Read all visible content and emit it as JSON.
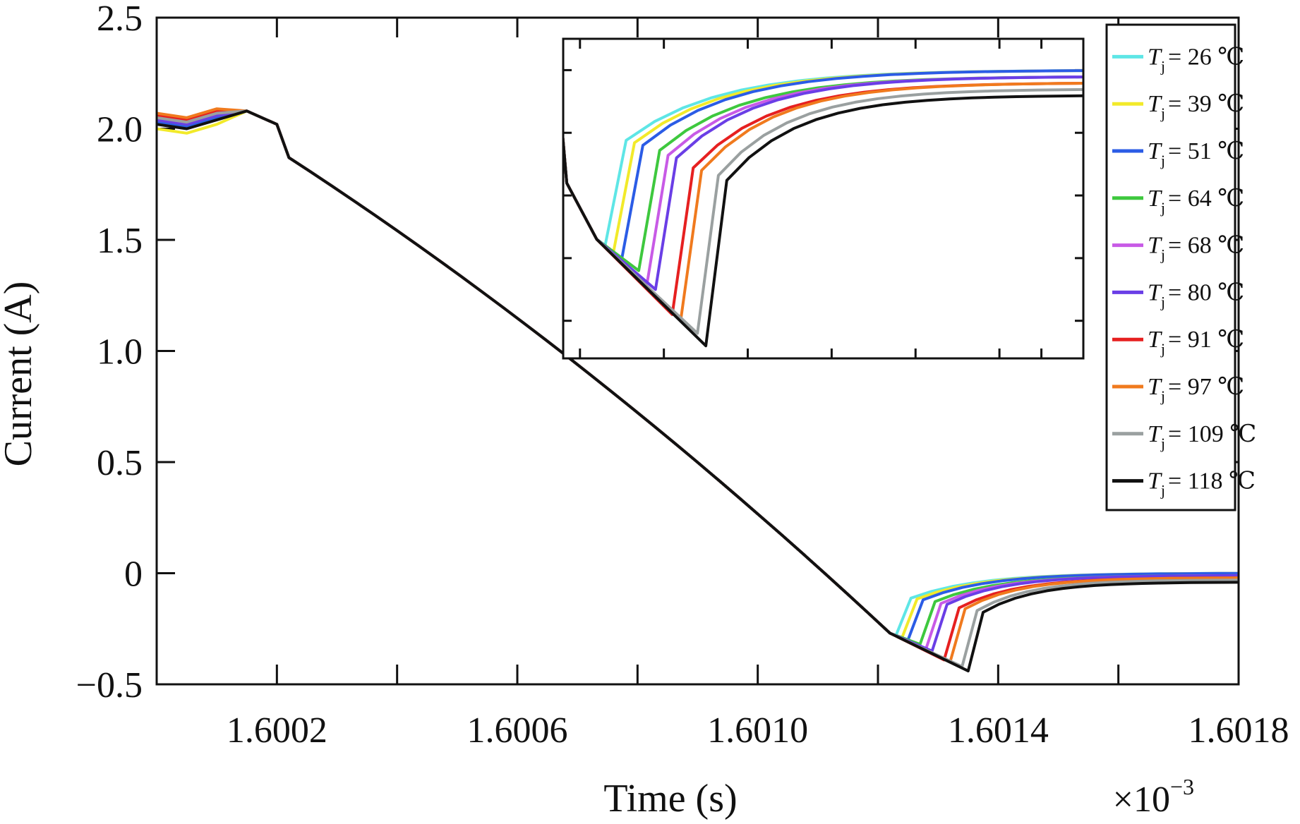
{
  "chart_data": {
    "type": "line",
    "xlabel": "Time (s)",
    "x_multiplier": "×10",
    "x_multiplier_exp": "−3",
    "ylabel": "Current (A)",
    "xlim": [
      1.6,
      1.6018
    ],
    "ylim": [
      -0.5,
      2.5
    ],
    "x_ticks": [
      "1.6002",
      "1.6006",
      "1.6010",
      "1.6014",
      "1.6018"
    ],
    "x_tick_values": [
      1.6002,
      1.6006,
      1.601,
      1.6014,
      1.6018
    ],
    "y_ticks": [
      "2.5",
      "2.0",
      "1.5",
      "1.0",
      "0.5",
      "0",
      "−0.5"
    ],
    "y_tick_values": [
      2.5,
      2.0,
      1.5,
      1.0,
      0.5,
      0,
      -0.5
    ],
    "legend_position": "top-right",
    "legend_prefix": "T",
    "legend_subscript": "j",
    "series": [
      {
        "name": "= 26 ℃",
        "color": "#5ee6e6",
        "start": 2.03,
        "t_min": 1.60123,
        "i_min": -0.28,
        "recover": 0.0
      },
      {
        "name": "= 39 ℃",
        "color": "#f2ea2a",
        "start": 2.0,
        "t_min": 1.60124,
        "i_min": -0.29,
        "recover": 0.0
      },
      {
        "name": "= 51 ℃",
        "color": "#2b5ce6",
        "start": 2.03,
        "t_min": 1.60125,
        "i_min": -0.3,
        "recover": 0.0
      },
      {
        "name": "= 64 ℃",
        "color": "#3ec83e",
        "start": 2.04,
        "t_min": 1.60127,
        "i_min": -0.32,
        "recover": -0.01
      },
      {
        "name": "= 68 ℃",
        "color": "#c85ae6",
        "start": 2.05,
        "t_min": 1.60128,
        "i_min": -0.34,
        "recover": -0.01
      },
      {
        "name": "= 80 ℃",
        "color": "#6a3ee6",
        "start": 2.04,
        "t_min": 1.60129,
        "i_min": -0.35,
        "recover": -0.01
      },
      {
        "name": "= 91 ℃",
        "color": "#e62020",
        "start": 2.06,
        "t_min": 1.60131,
        "i_min": -0.39,
        "recover": -0.02
      },
      {
        "name": "= 97 ℃",
        "color": "#f07a1e",
        "start": 2.07,
        "t_min": 1.60132,
        "i_min": -0.4,
        "recover": -0.02
      },
      {
        "name": "= 109 ℃",
        "color": "#9aa0a0",
        "start": 2.05,
        "t_min": 1.60134,
        "i_min": -0.42,
        "recover": -0.03
      },
      {
        "name": "= 118 ℃",
        "color": "#111111",
        "start": 2.02,
        "t_min": 1.60135,
        "i_min": -0.44,
        "recover": -0.04
      }
    ]
  }
}
